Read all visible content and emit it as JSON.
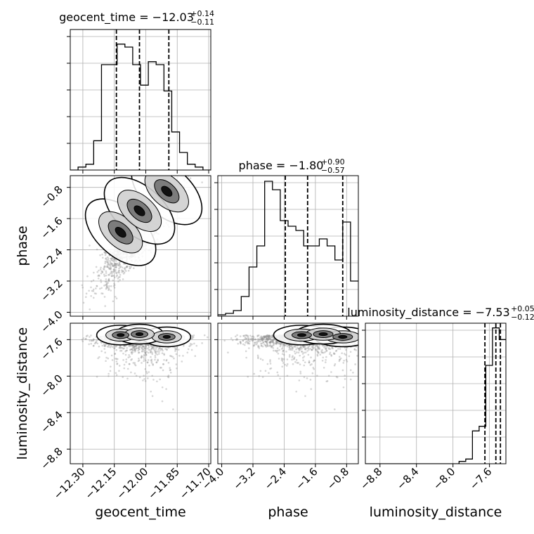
{
  "chart_data": {
    "type": "corner",
    "params": [
      "geocent_time",
      "phase",
      "luminosity_distance"
    ],
    "ranges": {
      "geocent_time": [
        -12.36,
        -11.69
      ],
      "phase": [
        -4.1,
        -0.5
      ],
      "luminosity_distance": [
        -8.96,
        -7.42
      ]
    },
    "ticks": {
      "geocent_time": [
        "−12.30",
        "−12.15",
        "−12.00",
        "−11.85",
        "−11.70"
      ],
      "phase": [
        "−4.0",
        "−3.2",
        "−2.4",
        "−1.6",
        "−0.8"
      ],
      "luminosity_distance": [
        "−8.8",
        "−8.4",
        "−8.0",
        "−7.6"
      ]
    },
    "tick_values": {
      "geocent_time": [
        -12.3,
        -12.15,
        -12.0,
        -11.85,
        -11.7
      ],
      "phase": [
        -4.0,
        -3.2,
        -2.4,
        -1.6,
        -0.8
      ],
      "luminosity_distance": [
        -8.8,
        -8.4,
        -8.0,
        -7.6
      ]
    },
    "titles": [
      {
        "param": "geocent_time",
        "prefix": "geocent_time = ",
        "median": "−12.03",
        "plus": "+0.14",
        "minus": "−0.11"
      },
      {
        "param": "phase",
        "prefix": "phase = ",
        "median": "−1.80",
        "plus": "+0.90",
        "minus": "−0.57"
      },
      {
        "param": "luminosity_distance",
        "prefix": "luminosity_distance = ",
        "median": "−7.53",
        "plus": "+0.05",
        "minus": "−0.12"
      }
    ],
    "quantiles": {
      "geocent_time": [
        -12.14,
        -12.03,
        -11.89
      ],
      "phase": [
        -2.37,
        -1.8,
        -0.9
      ],
      "luminosity_distance": [
        -7.65,
        -7.53,
        -7.48
      ]
    },
    "histograms": {
      "geocent_time": {
        "min": -12.36,
        "max": -11.69,
        "counts": [
          0,
          1,
          2,
          10,
          36,
          36,
          43,
          42,
          36,
          29,
          37,
          36,
          27,
          13,
          6,
          2,
          1,
          0
        ]
      },
      "phase": {
        "min": -4.1,
        "max": -0.5,
        "counts": [
          1,
          2,
          4,
          14,
          35,
          50,
          96,
          90,
          68,
          64,
          61,
          50,
          50,
          55,
          50,
          40,
          67,
          25
        ]
      },
      "luminosity_distance": {
        "min": -8.96,
        "max": -7.42,
        "counts": [
          0,
          0,
          0,
          0,
          0,
          0,
          0,
          0,
          0,
          0,
          0,
          0,
          0,
          0,
          1,
          2,
          14,
          16,
          42,
          58,
          53
        ]
      }
    },
    "histogram_ymax": {
      "geocent_time": 48,
      "phase": 100,
      "luminosity_distance": 60
    },
    "density_centers": [
      {
        "x": -12.12,
        "y": -1.95,
        "ld": -7.55
      },
      {
        "x": -11.9,
        "y": -0.9,
        "ld": -7.57
      },
      {
        "x": -12.03,
        "y": -1.4,
        "ld": -7.54
      }
    ],
    "axis_labels": {
      "x": [
        "geocent_time",
        "phase",
        "luminosity_distance"
      ],
      "y": [
        "phase",
        "luminosity_distance"
      ]
    },
    "grid": true
  }
}
